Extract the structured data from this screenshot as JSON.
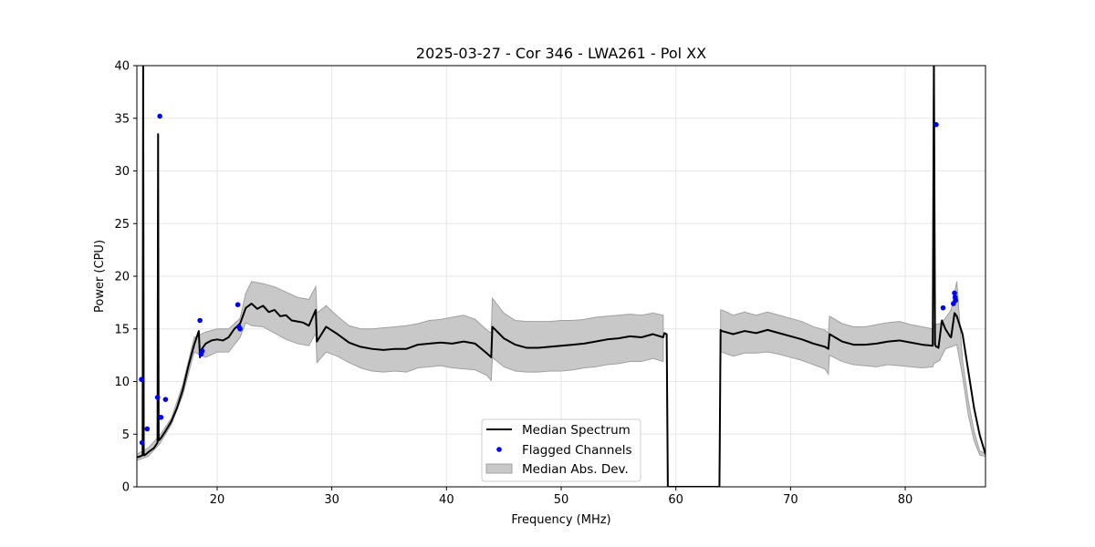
{
  "chart_data": {
    "type": "line",
    "title": "2025-03-27 - Cor 346 - LWA261 - Pol XX",
    "xlabel": "Frequency (MHz)",
    "ylabel": "Power (CPU)",
    "xlim": [
      13.0,
      87.0
    ],
    "ylim": [
      0,
      40
    ],
    "x_ticks": [
      20,
      30,
      40,
      50,
      60,
      70,
      80
    ],
    "y_ticks": [
      0,
      5,
      10,
      15,
      20,
      25,
      30,
      35,
      40
    ],
    "grid": true,
    "legend_placement": "lower-center",
    "colors": {
      "median": "#000000",
      "flagged": "#0000ff",
      "mad_fill": "#c8c8c8",
      "mad_edge": "#a0a0a0"
    },
    "series": [
      {
        "name": "Median Spectrum",
        "style": "line",
        "x": [
          13.0,
          13.3,
          13.5,
          13.55,
          13.6,
          13.65,
          13.8,
          14.0,
          14.5,
          14.8,
          14.85,
          14.9,
          15.0,
          15.2,
          15.5,
          16.0,
          16.5,
          17.0,
          17.5,
          18.0,
          18.4,
          18.5,
          18.6,
          19.0,
          19.5,
          20.0,
          20.5,
          21.0,
          21.5,
          22.0,
          22.5,
          23.0,
          23.5,
          24.0,
          24.5,
          25.0,
          25.5,
          26.0,
          26.5,
          27.0,
          27.5,
          28.0,
          28.6,
          28.7,
          29.5,
          30.5,
          31.5,
          32.5,
          33.5,
          34.5,
          35.5,
          36.5,
          37.5,
          38.5,
          39.5,
          40.5,
          41.5,
          42.5,
          43.5,
          43.9,
          44.0,
          45.0,
          46.0,
          47.0,
          48.0,
          49.0,
          50.0,
          51.0,
          52.0,
          53.0,
          54.0,
          55.0,
          56.0,
          57.0,
          58.0,
          58.9,
          59.0,
          59.2,
          59.3,
          63.8,
          63.9,
          64.0,
          65.0,
          66.0,
          67.0,
          68.0,
          69.0,
          70.0,
          71.0,
          72.0,
          73.0,
          73.3,
          73.4,
          74.5,
          75.5,
          76.5,
          77.5,
          78.5,
          79.5,
          80.5,
          81.5,
          82.4,
          82.5,
          82.6,
          82.7,
          82.8,
          82.9,
          83.2,
          83.5,
          83.9,
          84.0,
          84.3,
          84.5,
          85.0,
          85.5,
          86.0,
          86.5,
          87.0
        ],
        "values": [
          2.8,
          2.9,
          3.0,
          41.0,
          3.2,
          3.0,
          3.1,
          3.3,
          3.7,
          4.2,
          33.5,
          4.4,
          4.5,
          4.8,
          5.3,
          6.2,
          7.5,
          9.2,
          11.5,
          13.5,
          14.8,
          12.3,
          13.0,
          13.6,
          13.9,
          14.0,
          13.9,
          14.2,
          15.0,
          15.5,
          17.0,
          17.4,
          16.9,
          17.2,
          16.6,
          16.8,
          16.2,
          16.3,
          15.8,
          15.7,
          15.6,
          15.3,
          16.8,
          13.8,
          15.2,
          14.5,
          13.7,
          13.3,
          13.1,
          13.0,
          13.1,
          13.1,
          13.5,
          13.6,
          13.7,
          13.6,
          13.8,
          13.6,
          12.7,
          12.3,
          15.2,
          14.1,
          13.5,
          13.2,
          13.2,
          13.3,
          13.4,
          13.5,
          13.6,
          13.8,
          14.0,
          14.1,
          14.3,
          14.2,
          14.5,
          14.2,
          14.6,
          14.5,
          0.0,
          0.0,
          14.9,
          14.8,
          14.5,
          14.8,
          14.6,
          14.9,
          14.6,
          14.3,
          14.0,
          13.6,
          13.3,
          13.1,
          14.5,
          13.8,
          13.5,
          13.5,
          13.6,
          13.8,
          13.9,
          13.7,
          13.5,
          13.4,
          41.0,
          13.5,
          13.3,
          13.3,
          13.2,
          15.8,
          15.0,
          14.3,
          14.2,
          16.5,
          16.2,
          14.5,
          11.0,
          7.5,
          4.9,
          3.1
        ]
      },
      {
        "name": "Flagged Channels",
        "style": "points",
        "x": [
          13.4,
          13.45,
          13.9,
          14.8,
          15.0,
          15.1,
          15.5,
          18.5,
          18.6,
          18.7,
          21.8,
          21.9,
          22.0,
          82.7,
          83.3,
          84.2,
          84.3,
          84.35,
          84.4
        ],
        "values": [
          10.2,
          4.2,
          5.5,
          8.5,
          35.2,
          6.6,
          8.3,
          15.8,
          12.6,
          12.9,
          17.3,
          15.2,
          15.0,
          34.4,
          17.0,
          17.4,
          18.4,
          18.0,
          17.7
        ]
      },
      {
        "name": "Median Abs. Dev.",
        "style": "band",
        "x": [
          13.0,
          14.0,
          15.0,
          16.0,
          17.0,
          18.0,
          19.0,
          20.0,
          21.0,
          22.0,
          22.5,
          23.0,
          24.0,
          25.0,
          26.0,
          27.0,
          28.0,
          28.6,
          28.7,
          29.5,
          30.5,
          31.5,
          32.5,
          33.5,
          34.5,
          35.5,
          36.5,
          37.5,
          38.5,
          39.5,
          40.5,
          41.5,
          42.5,
          43.5,
          43.9,
          44.0,
          45.0,
          46.0,
          47.0,
          48.0,
          49.0,
          50.0,
          51.0,
          52.0,
          53.0,
          54.0,
          55.0,
          56.0,
          57.0,
          58.0,
          58.9,
          59.3,
          63.8,
          63.9,
          64.0,
          65.0,
          66.0,
          67.0,
          68.0,
          69.0,
          70.0,
          71.0,
          72.0,
          73.0,
          73.3,
          73.4,
          74.5,
          75.5,
          76.5,
          77.5,
          78.5,
          79.5,
          80.5,
          81.5,
          82.4,
          82.5,
          83.0,
          83.5,
          84.0,
          84.5,
          85.0,
          85.5,
          86.0,
          86.5,
          87.0
        ],
        "upper": [
          3.1,
          3.7,
          4.9,
          6.5,
          9.7,
          14.2,
          14.7,
          15.0,
          15.0,
          16.0,
          18.4,
          19.5,
          19.3,
          19.0,
          18.5,
          18.0,
          17.8,
          19.0,
          16.5,
          17.2,
          16.2,
          15.3,
          15.0,
          15.0,
          15.1,
          15.2,
          15.3,
          15.5,
          15.8,
          15.9,
          16.1,
          16.3,
          15.9,
          14.9,
          14.6,
          17.9,
          16.5,
          15.8,
          15.7,
          15.7,
          15.7,
          15.8,
          15.8,
          15.9,
          16.1,
          16.2,
          16.3,
          16.4,
          16.3,
          16.5,
          16.3,
          null,
          null,
          16.8,
          16.8,
          16.3,
          16.6,
          16.3,
          16.6,
          16.3,
          16.0,
          15.7,
          15.2,
          14.9,
          14.6,
          16.2,
          15.5,
          15.2,
          15.2,
          15.4,
          15.6,
          15.7,
          15.4,
          15.2,
          15.0,
          15.4,
          15.5,
          16.0,
          16.8,
          19.5,
          12.0,
          8.2,
          5.3,
          3.4,
          3.2
        ],
        "lower": [
          2.5,
          2.9,
          4.1,
          5.9,
          8.7,
          12.8,
          12.3,
          12.8,
          12.8,
          14.2,
          15.6,
          15.3,
          15.2,
          14.6,
          14.0,
          13.6,
          13.4,
          14.6,
          11.8,
          12.8,
          12.4,
          11.8,
          11.3,
          11.0,
          10.9,
          11.0,
          10.9,
          11.3,
          11.4,
          11.5,
          11.3,
          11.2,
          11.1,
          10.6,
          10.1,
          12.3,
          11.4,
          11.0,
          10.9,
          10.9,
          11.0,
          11.0,
          11.1,
          11.3,
          11.4,
          11.6,
          11.7,
          11.9,
          11.9,
          12.2,
          11.9,
          null,
          null,
          12.8,
          12.8,
          12.4,
          12.7,
          12.7,
          12.8,
          12.6,
          12.3,
          12.0,
          11.6,
          11.2,
          10.7,
          12.5,
          11.9,
          11.6,
          11.5,
          11.4,
          11.6,
          11.5,
          11.4,
          11.3,
          11.4,
          11.7,
          12.0,
          13.1,
          13.3,
          13.5,
          10.5,
          6.8,
          4.4,
          3.0,
          2.9
        ]
      }
    ],
    "legend": [
      "Median Spectrum",
      "Flagged Channels",
      "Median Abs. Dev."
    ]
  }
}
